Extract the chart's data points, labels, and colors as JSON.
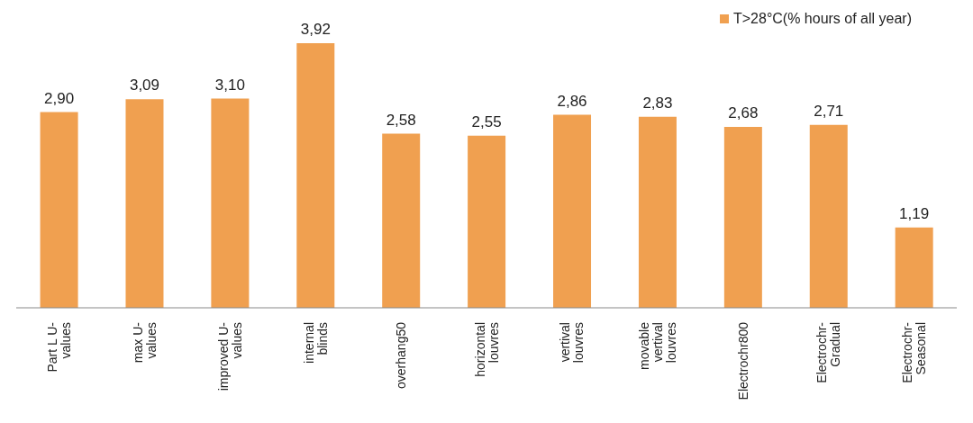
{
  "chart_data": {
    "type": "bar",
    "categories": [
      "Part L U-values",
      "max U-values",
      "improved U-values",
      "internal blinds",
      "overhang50",
      "horizontal louvres",
      "vertival louvres",
      "movable vertival louvres",
      "Electrochr800",
      "Electrochr-Gradual",
      "Electrochr-Seasonal"
    ],
    "series": [
      {
        "name": "T>28°C(% hours of all year)",
        "color": "#f0a050",
        "values": [
          2.9,
          3.09,
          3.1,
          3.92,
          2.58,
          2.55,
          2.86,
          2.83,
          2.68,
          2.71,
          1.19
        ],
        "value_labels": [
          "2,90",
          "3,09",
          "3,10",
          "3,92",
          "2,58",
          "2,55",
          "2,86",
          "2,83",
          "2,68",
          "2,71",
          "1,19"
        ]
      }
    ],
    "legend": "top right",
    "grid": false
  }
}
